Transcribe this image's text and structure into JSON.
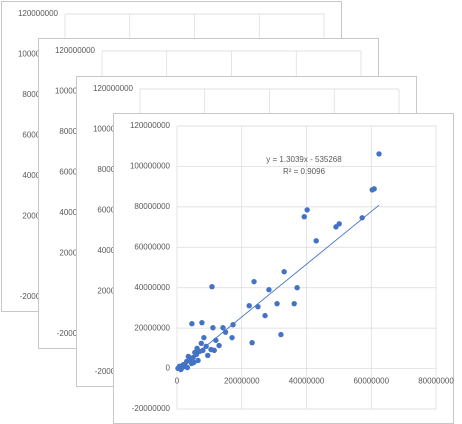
{
  "chart_data": {
    "type": "scatter",
    "x": [
      62400000,
      60900000,
      60300000,
      57200000,
      50100000,
      49100000,
      40200000,
      39300000,
      43000000,
      33100000,
      37100000,
      28400000,
      23800000,
      10800000,
      36200000,
      30900000,
      25000000,
      22300000,
      27200000,
      32100000,
      23200000,
      17300000,
      14200000,
      11100000,
      4600000,
      7700000,
      8300000,
      17000000,
      13000000,
      10500000,
      1000000,
      2000000,
      3000000,
      4000000,
      5000000,
      6000000,
      7000000,
      8000000,
      9000000,
      1500000,
      2500000,
      3500000,
      4500000,
      5500000,
      6500000,
      7500000,
      9500000,
      12000000,
      500000,
      1200000,
      2200000,
      3200000,
      5200000,
      6200000,
      15000000,
      11500000,
      300000,
      800000
    ],
    "y": [
      106200000,
      88900000,
      88400000,
      74600000,
      71600000,
      70100000,
      78500000,
      75100000,
      63200000,
      47900000,
      40000000,
      39000000,
      43000000,
      40500000,
      32100000,
      32100000,
      30600000,
      31100000,
      26200000,
      16800000,
      12800000,
      21700000,
      20200000,
      20200000,
      22200000,
      22700000,
      15300000,
      15300000,
      11400000,
      9400000,
      800000,
      2000000,
      3500000,
      4500000,
      5500000,
      7000000,
      8500000,
      9000000,
      11000000,
      300000,
      1500000,
      6000000,
      2500000,
      8000000,
      4000000,
      12500000,
      6500000,
      14000000,
      200000,
      -500000,
      1000000,
      500000,
      3000000,
      10000000,
      18000000,
      9000000,
      100000,
      1200000
    ],
    "color": "#4472c4",
    "xlim": [
      0,
      80000000
    ],
    "xticks": [
      0,
      20000000,
      40000000,
      60000000,
      80000000
    ],
    "ylim": [
      -20000000,
      120000000
    ],
    "yticks": [
      -20000000,
      0,
      20000000,
      40000000,
      60000000,
      80000000,
      100000000,
      120000000
    ],
    "grid": true,
    "trendline": {
      "equation": "y = 1.3039x - 535268",
      "r_squared": "R² = 0.9096",
      "slope": 1.3039,
      "intercept": -535268,
      "color": "#4472c4"
    }
  }
}
